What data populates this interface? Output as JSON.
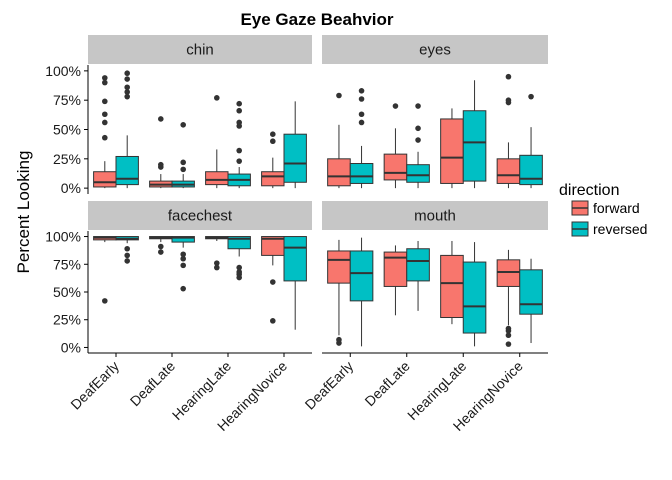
{
  "chart_data": {
    "type": "boxplot",
    "title": "Eye Gaze Beahvior",
    "xlabel": "",
    "ylabel": "Percent Looking",
    "y_ticks": [
      "0%",
      "25%",
      "50%",
      "75%",
      "100%"
    ],
    "y_tick_values": [
      0,
      25,
      50,
      75,
      100
    ],
    "categories": [
      "DeafEarly",
      "DeafLate",
      "HearingLate",
      "HearingNovice"
    ],
    "legend": {
      "title": "direction",
      "position": "right",
      "entries": [
        {
          "name": "forward",
          "color": "#F8766D"
        },
        {
          "name": "reversed",
          "color": "#00BFC4"
        }
      ]
    },
    "facet_layout": "2x2",
    "panels": [
      {
        "facet": "chin",
        "boxes": [
          {
            "category": "DeafEarly",
            "direction": "forward",
            "q1": 1,
            "median": 5,
            "q3": 14,
            "whisker_low": 0,
            "whisker_high": 23,
            "outliers": [
              43,
              56,
              63,
              74,
              90,
              94
            ]
          },
          {
            "category": "DeafEarly",
            "direction": "reversed",
            "q1": 3,
            "median": 8,
            "q3": 27,
            "whisker_low": 0,
            "whisker_high": 45,
            "outliers": [
              78,
              82,
              86,
              93,
              98
            ]
          },
          {
            "category": "DeafLate",
            "direction": "forward",
            "q1": 1,
            "median": 3,
            "q3": 6,
            "whisker_low": 0,
            "whisker_high": 12,
            "outliers": [
              18,
              20,
              59
            ]
          },
          {
            "category": "DeafLate",
            "direction": "reversed",
            "q1": 1,
            "median": 3,
            "q3": 6,
            "whisker_low": 0,
            "whisker_high": 12,
            "outliers": [
              16,
              22,
              54
            ]
          },
          {
            "category": "HearingLate",
            "direction": "forward",
            "q1": 3,
            "median": 7,
            "q3": 14,
            "whisker_low": 0,
            "whisker_high": 33,
            "outliers": [
              77
            ]
          },
          {
            "category": "HearingLate",
            "direction": "reversed",
            "q1": 2,
            "median": 7,
            "q3": 12,
            "whisker_low": 0,
            "whisker_high": 18,
            "outliers": [
              23,
              32,
              53,
              56,
              66,
              72
            ]
          },
          {
            "category": "HearingNovice",
            "direction": "forward",
            "q1": 2,
            "median": 10,
            "q3": 14,
            "whisker_low": 0,
            "whisker_high": 26,
            "outliers": [
              40,
              46
            ]
          },
          {
            "category": "HearingNovice",
            "direction": "reversed",
            "q1": 5,
            "median": 21,
            "q3": 46,
            "whisker_low": 0,
            "whisker_high": 74,
            "outliers": []
          }
        ]
      },
      {
        "facet": "eyes",
        "boxes": [
          {
            "category": "DeafEarly",
            "direction": "forward",
            "q1": 2,
            "median": 10,
            "q3": 25,
            "whisker_low": 0,
            "whisker_high": 54,
            "outliers": [
              79
            ]
          },
          {
            "category": "DeafEarly",
            "direction": "reversed",
            "q1": 4,
            "median": 10,
            "q3": 21,
            "whisker_low": 0,
            "whisker_high": 36,
            "outliers": [
              56,
              63,
              76,
              83
            ]
          },
          {
            "category": "DeafLate",
            "direction": "forward",
            "q1": 7,
            "median": 13,
            "q3": 29,
            "whisker_low": 0,
            "whisker_high": 51,
            "outliers": [
              70
            ]
          },
          {
            "category": "DeafLate",
            "direction": "reversed",
            "q1": 5,
            "median": 11,
            "q3": 20,
            "whisker_low": 0,
            "whisker_high": 31,
            "outliers": [
              41,
              51,
              70
            ]
          },
          {
            "category": "HearingLate",
            "direction": "forward",
            "q1": 4,
            "median": 26,
            "q3": 59,
            "whisker_low": 0,
            "whisker_high": 68,
            "outliers": []
          },
          {
            "category": "HearingLate",
            "direction": "reversed",
            "q1": 6,
            "median": 39,
            "q3": 66,
            "whisker_low": 0,
            "whisker_high": 92,
            "outliers": []
          },
          {
            "category": "HearingNovice",
            "direction": "forward",
            "q1": 4,
            "median": 11,
            "q3": 25,
            "whisker_low": 0,
            "whisker_high": 39,
            "outliers": [
              73,
              75,
              95
            ]
          },
          {
            "category": "HearingNovice",
            "direction": "reversed",
            "q1": 3,
            "median": 8,
            "q3": 28,
            "whisker_low": 0,
            "whisker_high": 52,
            "outliers": [
              78
            ]
          }
        ]
      },
      {
        "facet": "facechest",
        "boxes": [
          {
            "category": "DeafEarly",
            "direction": "forward",
            "q1": 97,
            "median": 99,
            "q3": 100,
            "whisker_low": 95,
            "whisker_high": 100,
            "outliers": [
              42
            ]
          },
          {
            "category": "DeafEarly",
            "direction": "reversed",
            "q1": 97,
            "median": 98,
            "q3": 100,
            "whisker_low": 94,
            "whisker_high": 100,
            "outliers": [
              78,
              83,
              89
            ]
          },
          {
            "category": "DeafLate",
            "direction": "forward",
            "q1": 98,
            "median": 99,
            "q3": 100,
            "whisker_low": 95,
            "whisker_high": 100,
            "outliers": [
              86,
              91
            ]
          },
          {
            "category": "DeafLate",
            "direction": "reversed",
            "q1": 95,
            "median": 99,
            "q3": 100,
            "whisker_low": 90,
            "whisker_high": 100,
            "outliers": [
              53,
              74,
              80,
              84
            ]
          },
          {
            "category": "HearingLate",
            "direction": "forward",
            "q1": 98,
            "median": 99,
            "q3": 100,
            "whisker_low": 96,
            "whisker_high": 100,
            "outliers": [
              72,
              76
            ]
          },
          {
            "category": "HearingLate",
            "direction": "reversed",
            "q1": 89,
            "median": 98,
            "q3": 100,
            "whisker_low": 82,
            "whisker_high": 100,
            "outliers": [
              63,
              66,
              68,
              72
            ]
          },
          {
            "category": "HearingNovice",
            "direction": "forward",
            "q1": 83,
            "median": 98,
            "q3": 100,
            "whisker_low": 74,
            "whisker_high": 100,
            "outliers": [
              24,
              59
            ]
          },
          {
            "category": "HearingNovice",
            "direction": "reversed",
            "q1": 60,
            "median": 90,
            "q3": 100,
            "whisker_low": 16,
            "whisker_high": 100,
            "outliers": []
          }
        ]
      },
      {
        "facet": "mouth",
        "boxes": [
          {
            "category": "DeafEarly",
            "direction": "forward",
            "q1": 58,
            "median": 79,
            "q3": 87,
            "whisker_low": 11,
            "whisker_high": 97,
            "outliers": [
              4,
              7
            ]
          },
          {
            "category": "DeafEarly",
            "direction": "reversed",
            "q1": 42,
            "median": 67,
            "q3": 87,
            "whisker_low": 1,
            "whisker_high": 99,
            "outliers": []
          },
          {
            "category": "DeafLate",
            "direction": "forward",
            "q1": 55,
            "median": 81,
            "q3": 86,
            "whisker_low": 29,
            "whisker_high": 92,
            "outliers": []
          },
          {
            "category": "DeafLate",
            "direction": "reversed",
            "q1": 60,
            "median": 78,
            "q3": 89,
            "whisker_low": 33,
            "whisker_high": 96,
            "outliers": []
          },
          {
            "category": "HearingLate",
            "direction": "forward",
            "q1": 27,
            "median": 58,
            "q3": 83,
            "whisker_low": 21,
            "whisker_high": 96,
            "outliers": []
          },
          {
            "category": "HearingLate",
            "direction": "reversed",
            "q1": 13,
            "median": 37,
            "q3": 77,
            "whisker_low": 1,
            "whisker_high": 95,
            "outliers": []
          },
          {
            "category": "HearingNovice",
            "direction": "forward",
            "q1": 55,
            "median": 68,
            "q3": 79,
            "whisker_low": 20,
            "whisker_high": 88,
            "outliers": [
              3,
              11,
              15,
              17
            ]
          },
          {
            "category": "HearingNovice",
            "direction": "reversed",
            "q1": 30,
            "median": 39,
            "q3": 70,
            "whisker_low": 4,
            "whisker_high": 80,
            "outliers": []
          }
        ]
      }
    ]
  }
}
